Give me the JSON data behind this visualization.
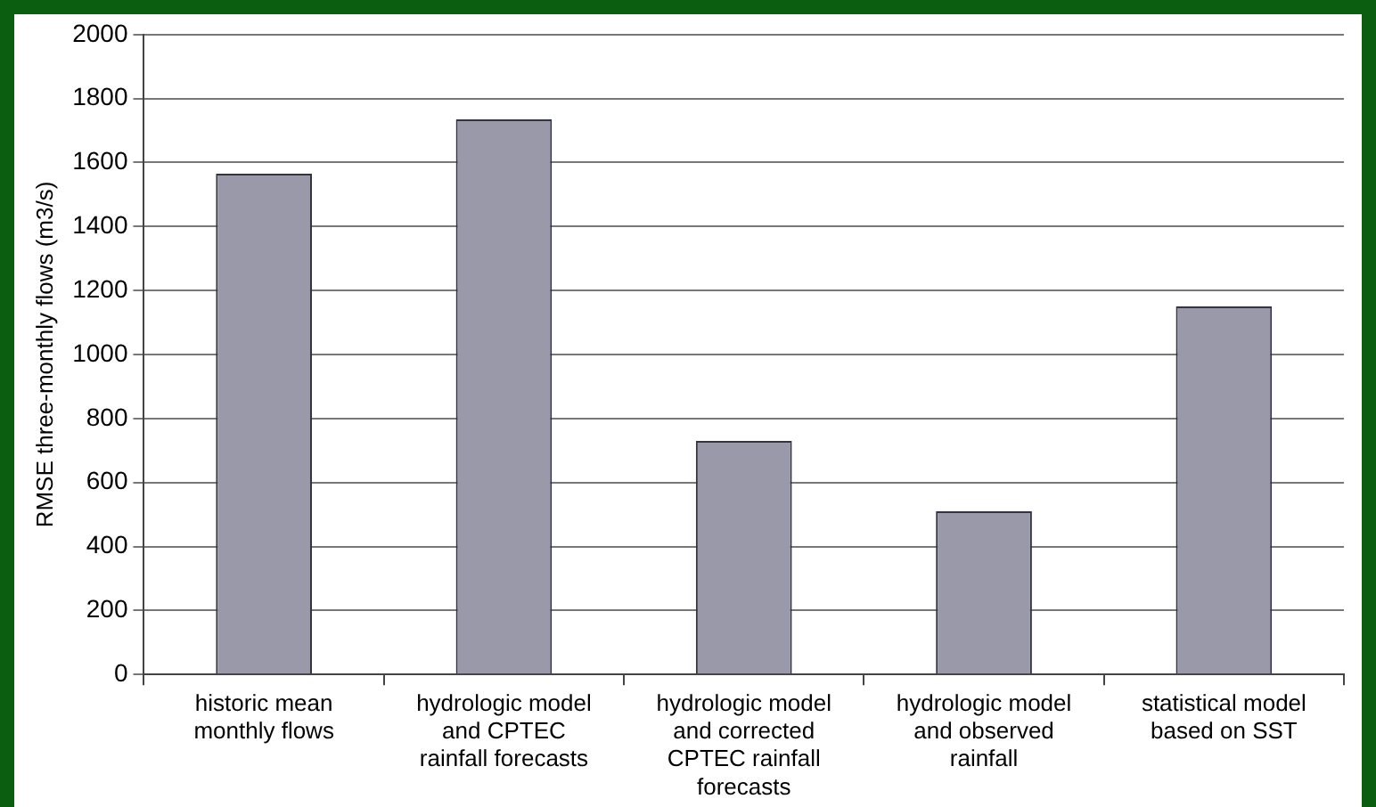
{
  "chart_data": {
    "type": "bar",
    "ylabel": "RMSE three-monthly flows (m3/s)",
    "categories": [
      "historic mean\nmonthly flows",
      "hydrologic model\nand CPTEC\nrainfall forecasts",
      "hydrologic model\nand corrected\nCPTEC rainfall\nforecasts",
      "hydrologic model\nand observed\nrainfall",
      "statistical model\nbased on SST"
    ],
    "values": [
      1565,
      1735,
      730,
      510,
      1150
    ],
    "color": "#9999aa",
    "ylim": [
      0,
      2000
    ],
    "yticks": [
      0,
      200,
      400,
      600,
      800,
      1000,
      1200,
      1400,
      1600,
      1800,
      2000
    ],
    "grid": "y"
  }
}
